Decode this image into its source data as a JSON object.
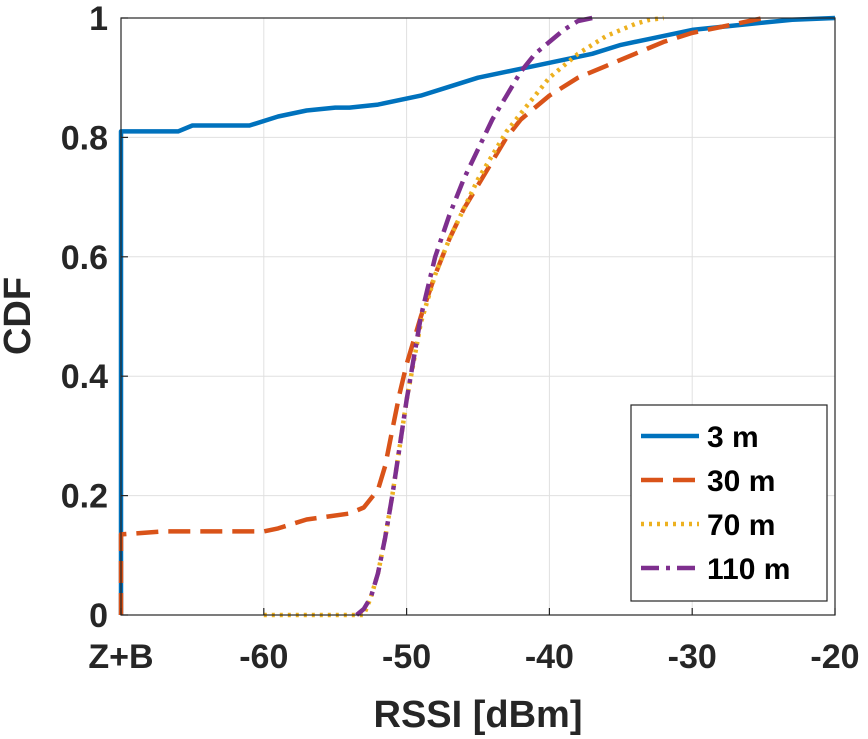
{
  "chart_data": {
    "type": "line",
    "title": "",
    "xlabel": "RSSI [dBm]",
    "ylabel": "CDF",
    "xlim": [
      -70,
      -20
    ],
    "ylim": [
      0,
      1
    ],
    "grid": true,
    "xticks": [
      -70,
      -60,
      -50,
      -40,
      -30,
      -20
    ],
    "xtick_labels": [
      "Z+B",
      "-60",
      "-50",
      "-40",
      "-30",
      "-20"
    ],
    "yticks": [
      0,
      0.2,
      0.4,
      0.6,
      0.8,
      1
    ],
    "ytick_labels": [
      "0",
      "0.2",
      "0.4",
      "0.6",
      "0.8",
      "1"
    ],
    "legend_position": "bottom-right",
    "series": [
      {
        "name": "3 m",
        "color": "#0072BD",
        "style": "solid",
        "x": [
          -70,
          -70,
          -66,
          -65,
          -61,
          -59,
          -57,
          -55,
          -54,
          -52,
          -49,
          -47,
          -45,
          -43,
          -41,
          -39,
          -37,
          -35,
          -33,
          -30,
          -26,
          -23,
          -20
        ],
        "y": [
          0,
          0.81,
          0.81,
          0.82,
          0.82,
          0.835,
          0.845,
          0.85,
          0.85,
          0.855,
          0.87,
          0.885,
          0.9,
          0.91,
          0.92,
          0.93,
          0.94,
          0.955,
          0.965,
          0.98,
          0.99,
          0.997,
          1
        ]
      },
      {
        "name": "30 m",
        "color": "#D95319",
        "style": "dashed",
        "x": [
          -70,
          -70,
          -67,
          -60,
          -59,
          -57,
          -54,
          -53,
          -52,
          -51.5,
          -51,
          -50.5,
          -50,
          -49,
          -48,
          -47,
          -46,
          -45,
          -44,
          -43,
          -42,
          -40,
          -38,
          -36,
          -34,
          -32,
          -30,
          -28,
          -26,
          -25
        ],
        "y": [
          0,
          0.135,
          0.14,
          0.14,
          0.145,
          0.16,
          0.17,
          0.18,
          0.21,
          0.25,
          0.31,
          0.37,
          0.42,
          0.5,
          0.57,
          0.63,
          0.68,
          0.72,
          0.76,
          0.8,
          0.83,
          0.87,
          0.9,
          0.92,
          0.94,
          0.96,
          0.975,
          0.985,
          0.995,
          1
        ]
      },
      {
        "name": "70 m",
        "color": "#EDB120",
        "style": "dotted",
        "x": [
          -60,
          -53,
          -52.5,
          -52,
          -51.5,
          -51,
          -50.5,
          -50,
          -49,
          -48,
          -47,
          -46,
          -45,
          -44,
          -43,
          -42,
          -41,
          -40,
          -38,
          -36,
          -34,
          -33,
          -32
        ],
        "y": [
          0,
          0,
          0.03,
          0.07,
          0.13,
          0.2,
          0.28,
          0.36,
          0.49,
          0.57,
          0.63,
          0.68,
          0.73,
          0.77,
          0.81,
          0.84,
          0.87,
          0.9,
          0.94,
          0.97,
          0.99,
          0.997,
          1
        ]
      },
      {
        "name": "110 m",
        "color": "#7E2F8E",
        "style": "dashdot",
        "x": [
          -53.5,
          -53,
          -52.5,
          -52,
          -51.5,
          -51,
          -50.5,
          -50,
          -49,
          -48,
          -47,
          -46,
          -45,
          -44,
          -43,
          -42,
          -41,
          -40,
          -39,
          -38,
          -37
        ],
        "y": [
          0,
          0.01,
          0.03,
          0.07,
          0.13,
          0.2,
          0.28,
          0.36,
          0.5,
          0.6,
          0.67,
          0.73,
          0.78,
          0.83,
          0.87,
          0.91,
          0.94,
          0.96,
          0.98,
          0.995,
          1
        ]
      }
    ]
  }
}
